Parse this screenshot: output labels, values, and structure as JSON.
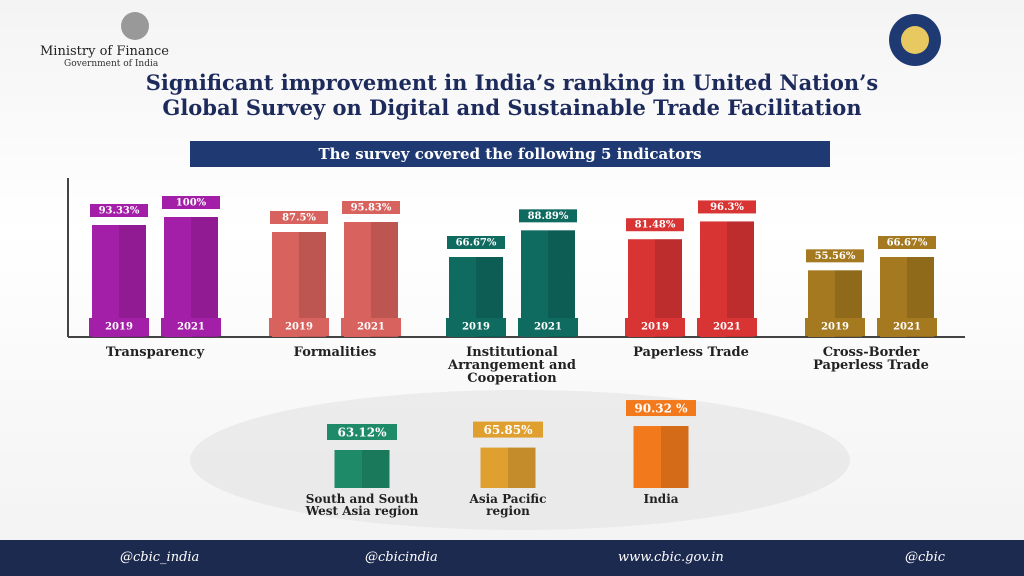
{
  "header": {
    "ministry": "Ministry of Finance",
    "government": "Government of India"
  },
  "title": "Significant improvement in India’s ranking in United Nation’s Global Survey on Digital and Sustainable Trade Facilitation",
  "subtitle": "The survey covered the following 5 indicators",
  "indicators": {
    "type": "bar",
    "years": [
      "2019",
      "2021"
    ],
    "ylim": [
      0,
      100
    ],
    "groups": [
      {
        "name": "Transparency",
        "color": "#a41fa8",
        "values": [
          93.33,
          100
        ],
        "value_labels": [
          "93.33%",
          "100%"
        ]
      },
      {
        "name": "Formalities",
        "color": "#d8625d",
        "values": [
          87.5,
          95.83
        ],
        "value_labels": [
          "87.5%",
          "95.83%"
        ]
      },
      {
        "name": "Institutional Arrangement and Cooperation",
        "color": "#0f6a60",
        "values": [
          66.67,
          88.89
        ],
        "value_labels": [
          "66.67%",
          "88.89%"
        ]
      },
      {
        "name": "Paperless Trade",
        "color": "#d83434",
        "values": [
          81.48,
          96.3
        ],
        "value_labels": [
          "81.48%",
          "96.3%"
        ]
      },
      {
        "name": "Cross-Border Paperless Trade",
        "color": "#a4791f",
        "values": [
          55.56,
          66.67
        ],
        "value_labels": [
          "55.56%",
          "66.67%"
        ]
      }
    ]
  },
  "regions": {
    "type": "bar",
    "ylim": [
      20,
      100
    ],
    "categories": [
      "South and South West Asia region",
      "Asia Pacific region",
      "India"
    ],
    "colors": [
      "#1f8a68",
      "#e0a030",
      "#f27a1c"
    ],
    "values": [
      63.12,
      65.85,
      90.32
    ],
    "value_labels": [
      "63.12%",
      "65.85%",
      "90.32 %"
    ]
  },
  "footer": {
    "twitter": "@cbic_india",
    "facebook": "@cbicindia",
    "website": "www.cbic.gov.in",
    "other": "@cbic"
  }
}
